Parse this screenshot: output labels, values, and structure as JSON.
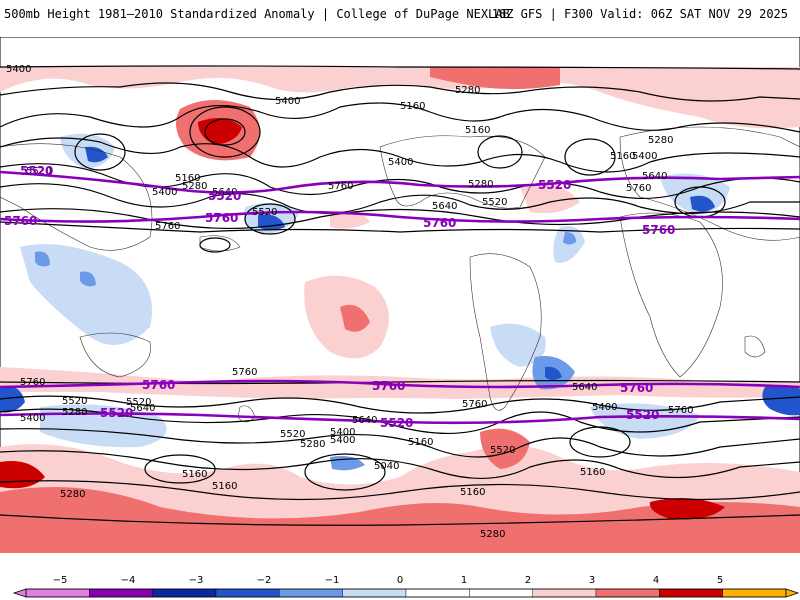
{
  "header": {
    "title_left": "500mb Height 1981–2010 Standardized Anomaly | College of DuPage NEXLAB",
    "title_right": "18Z GFS | F300 Valid: 06Z SAT NOV 29 2025"
  },
  "map": {
    "contour_labels": [
      "5400",
      "5280",
      "5400",
      "5160",
      "5160",
      "5280",
      "5160",
      "5400",
      "5520",
      "5160",
      "5280",
      "5400",
      "5520",
      "5760",
      "5640",
      "5520",
      "5280",
      "5640",
      "5400",
      "5760",
      "5640",
      "5760",
      "5760",
      "5640",
      "5520",
      "5640",
      "5400",
      "5760",
      "5760",
      "5520",
      "5400",
      "5280",
      "5640",
      "5520",
      "5280",
      "5400",
      "5160",
      "5520",
      "5160",
      "5040",
      "5160",
      "5160",
      "5280",
      "5280",
      "5160",
      "5400",
      "5760"
    ],
    "purple_labels": [
      "5520",
      "5760",
      "5760",
      "5520",
      "5760",
      "5520",
      "5760",
      "5760",
      "5760",
      "5760",
      "5520",
      "5520",
      "5520"
    ],
    "colors": {
      "neg_strong": "#2255cc",
      "neg_mid": "#6a9ae8",
      "neg_weak": "#c8dcf6",
      "pos_weak": "#fbd0d0",
      "pos_mid": "#f07070",
      "pos_strong": "#cc0000",
      "contour": "#000000",
      "highlight": "#8800bb"
    }
  },
  "colorbar": {
    "ticks": [
      "−5",
      "−4",
      "−3",
      "−2",
      "−1",
      "0",
      "1",
      "2",
      "3",
      "4",
      "5"
    ],
    "colors": [
      "#e080e0",
      "#8a00b0",
      "#0a28a0",
      "#2255cc",
      "#6a9ae8",
      "#c8dcf6",
      "#ffffff",
      "#ffffff",
      "#fbd0d0",
      "#f07070",
      "#cc0000",
      "#ffb000"
    ]
  }
}
